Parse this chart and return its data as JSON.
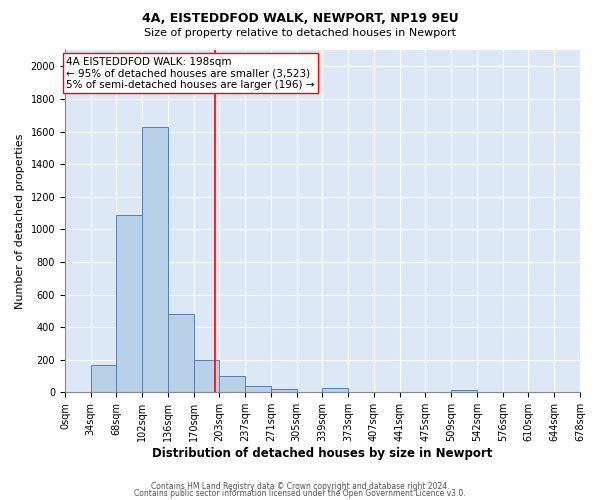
{
  "title": "4A, EISTEDDFOD WALK, NEWPORT, NP19 9EU",
  "subtitle": "Size of property relative to detached houses in Newport",
  "xlabel": "Distribution of detached houses by size in Newport",
  "ylabel": "Number of detached properties",
  "footnote1": "Contains HM Land Registry data © Crown copyright and database right 2024.",
  "footnote2": "Contains public sector information licensed under the Open Government Licence v3.0.",
  "bin_labels": [
    "0sqm",
    "34sqm",
    "68sqm",
    "102sqm",
    "136sqm",
    "170sqm",
    "203sqm",
    "237sqm",
    "271sqm",
    "305sqm",
    "339sqm",
    "373sqm",
    "407sqm",
    "441sqm",
    "475sqm",
    "509sqm",
    "542sqm",
    "576sqm",
    "610sqm",
    "644sqm",
    "678sqm"
  ],
  "bar_values": [
    0,
    170,
    1090,
    1625,
    480,
    200,
    100,
    42,
    18,
    0,
    28,
    0,
    0,
    0,
    0,
    12,
    0,
    0,
    0,
    0,
    0
  ],
  "bar_color": "#b8d0e8",
  "bar_edge_color": "#5580b0",
  "vline_x": 198,
  "vline_color": "red",
  "bin_width": 34,
  "annotation_text1": "4A EISTEDDFOD WALK: 198sqm",
  "annotation_text2": "← 95% of detached houses are smaller (3,523)",
  "annotation_text3": "5% of semi-detached houses are larger (196) →",
  "ylim": [
    0,
    2100
  ],
  "yticks": [
    0,
    200,
    400,
    600,
    800,
    1000,
    1200,
    1400,
    1600,
    1800,
    2000
  ],
  "plot_background": "#dce8f5",
  "grid_color": "#ffffff",
  "title_fontsize": 9,
  "subtitle_fontsize": 8,
  "xlabel_fontsize": 8.5,
  "ylabel_fontsize": 8,
  "tick_fontsize": 7,
  "annot_fontsize": 7.5,
  "footnote_fontsize": 5.5
}
